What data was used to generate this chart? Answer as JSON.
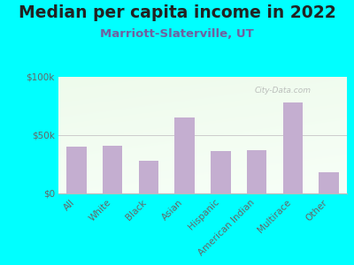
{
  "title": "Median per capita income in 2022",
  "subtitle": "Marriott-Slaterville, UT",
  "categories": [
    "All",
    "White",
    "Black",
    "Asian",
    "Hispanic",
    "American Indian",
    "Multirace",
    "Other"
  ],
  "values": [
    40000,
    41000,
    28000,
    65000,
    36000,
    37000,
    78000,
    18000
  ],
  "bar_color": "#c4aed0",
  "background_color": "#00FFFF",
  "title_color": "#222222",
  "subtitle_color": "#7060a0",
  "tick_color": "#666666",
  "ylim": [
    0,
    100000
  ],
  "yticks": [
    0,
    50000,
    100000
  ],
  "ytick_labels": [
    "$0",
    "$50k",
    "$100k"
  ],
  "watermark": "City-Data.com",
  "title_fontsize": 13.5,
  "subtitle_fontsize": 9.5,
  "tick_fontsize": 7.5,
  "label_fontsize": 7.5
}
